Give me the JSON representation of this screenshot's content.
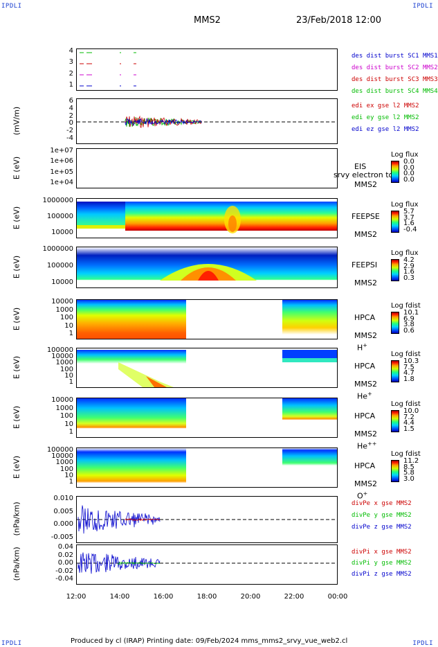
{
  "corners": {
    "tl": "IPDLI",
    "tr": "IPDLI",
    "bl": "IPDLI",
    "br": "IPDLI"
  },
  "header": {
    "title": "MMS2",
    "datetime": "23/Feb/2018 12:00"
  },
  "x_axis": {
    "ticks": [
      "12:00",
      "14:00",
      "16:00",
      "18:00",
      "20:00",
      "22:00",
      "00:00"
    ]
  },
  "footer": {
    "text": "Produced by cl (IRAP)   Printing date: 09/Feb/2024   mms_mms2_srvy_vue_web2.cl"
  },
  "panels": [
    {
      "id": "burst",
      "ylabel": "",
      "yticks": [
        "4",
        "3",
        "2",
        "1"
      ],
      "legend": [
        {
          "text": "des dist burst SC1 MMS1",
          "color": "#0000cc"
        },
        {
          "text": "des dist burst SC2 MMS2",
          "color": "#cc00cc"
        },
        {
          "text": "des dist burst SC3 MMS3",
          "color": "#cc0000"
        },
        {
          "text": "des dist burst SC4 MMS4",
          "color": "#00bb00"
        }
      ]
    },
    {
      "id": "edi",
      "ylabel": "(mV/m)",
      "yticks": [
        "6",
        "4",
        "2",
        "0",
        "-2",
        "-4"
      ],
      "legend": [
        {
          "text": "edi ex gse l2 MMS2",
          "color": "#cc0000"
        },
        {
          "text": "edi ey gse l2 MMS2",
          "color": "#00bb00"
        },
        {
          "text": "edi ez gse l2 MMS2",
          "color": "#0000cc"
        }
      ]
    },
    {
      "id": "eis",
      "ylabel": "E (eV)",
      "yticks": [
        "1e+07",
        "1e+06",
        "1e+05",
        "1e+04"
      ],
      "inst": [
        "EIS",
        "MMS2"
      ],
      "overlay": "srvy electron to",
      "cbar": {
        "title": "Log flux",
        "values": [
          "0.0",
          "0.0",
          "0.0",
          "0.0"
        ]
      }
    },
    {
      "id": "feepse",
      "ylabel": "E (eV)",
      "yticks": [
        "1000000",
        "100000",
        "10000"
      ],
      "inst": [
        "FEEPSE",
        "MMS2"
      ],
      "cbar": {
        "title": "Log flux",
        "values": [
          "5.7",
          "3.7",
          "1.6",
          "-0.4"
        ]
      }
    },
    {
      "id": "feepsi",
      "ylabel": "E (eV)",
      "yticks": [
        "1000000",
        "100000",
        "10000"
      ],
      "inst": [
        "FEEPSI",
        "MMS2"
      ],
      "cbar": {
        "title": "Log flux",
        "values": [
          "4.2",
          "2.9",
          "1.6",
          "0.3"
        ]
      }
    },
    {
      "id": "hpca_h",
      "ylabel": "E (eV)",
      "yticks": [
        "10000",
        "1000",
        "100",
        "10",
        "1"
      ],
      "inst": [
        "HPCA",
        "MMS2",
        "H+"
      ],
      "cbar": {
        "title": "Log fdist",
        "values": [
          "10.1",
          "6.9",
          "3.8",
          "0.6"
        ]
      }
    },
    {
      "id": "hpca_he",
      "ylabel": "E (eV)",
      "yticks": [
        "100000",
        "10000",
        "1000",
        "100",
        "10",
        "1"
      ],
      "inst": [
        "HPCA",
        "MMS2",
        "He+"
      ],
      "cbar": {
        "title": "Log fdist",
        "values": [
          "10.3",
          "7.5",
          "4.7",
          "1.8"
        ]
      }
    },
    {
      "id": "hpca_hepp",
      "ylabel": "E (eV)",
      "yticks": [
        "10000",
        "1000",
        "100",
        "10",
        "1"
      ],
      "inst": [
        "HPCA",
        "MMS2",
        "He++"
      ],
      "cbar": {
        "title": "Log fdist",
        "values": [
          "10.0",
          "7.2",
          "4.4",
          "1.5"
        ]
      }
    },
    {
      "id": "hpca_o",
      "ylabel": "E (eV)",
      "yticks": [
        "100000",
        "10000",
        "1000",
        "100",
        "10",
        "1"
      ],
      "inst": [
        "HPCA",
        "MMS2",
        "O+"
      ],
      "cbar": {
        "title": "Log fdist",
        "values": [
          "11.2",
          "8.5",
          "5.8",
          "3.0"
        ]
      }
    },
    {
      "id": "divpe",
      "ylabel": "(nPa/km)",
      "yticks": [
        "0.010",
        "0.005",
        "0.000",
        "-0.005"
      ],
      "legend": [
        {
          "text": "divPe x gse MMS2",
          "color": "#cc0000"
        },
        {
          "text": "divPe y gse MMS2",
          "color": "#00bb00"
        },
        {
          "text": "divPe z gse MMS2",
          "color": "#0000cc"
        }
      ]
    },
    {
      "id": "divpi",
      "ylabel": "(nPa/km)",
      "yticks": [
        "0.04",
        "0.02",
        "0.00",
        "-0.02",
        "-0.04"
      ],
      "legend": [
        {
          "text": "divPi x gse MMS2",
          "color": "#cc0000"
        },
        {
          "text": "divPi y gse MMS2",
          "color": "#00bb00"
        },
        {
          "text": "divPi z gse MMS2",
          "color": "#0000cc"
        }
      ]
    }
  ],
  "chart_data": {
    "type": "spectrogram-stack",
    "x": {
      "range": [
        "12:00",
        "00:00"
      ],
      "ticks": [
        "12:00",
        "14:00",
        "16:00",
        "18:00",
        "20:00",
        "22:00",
        "00:00"
      ]
    },
    "hpca_data_gap": [
      "17:00",
      "21:30"
    ],
    "edi_data_interval": [
      "13:45",
      "17:30"
    ]
  }
}
